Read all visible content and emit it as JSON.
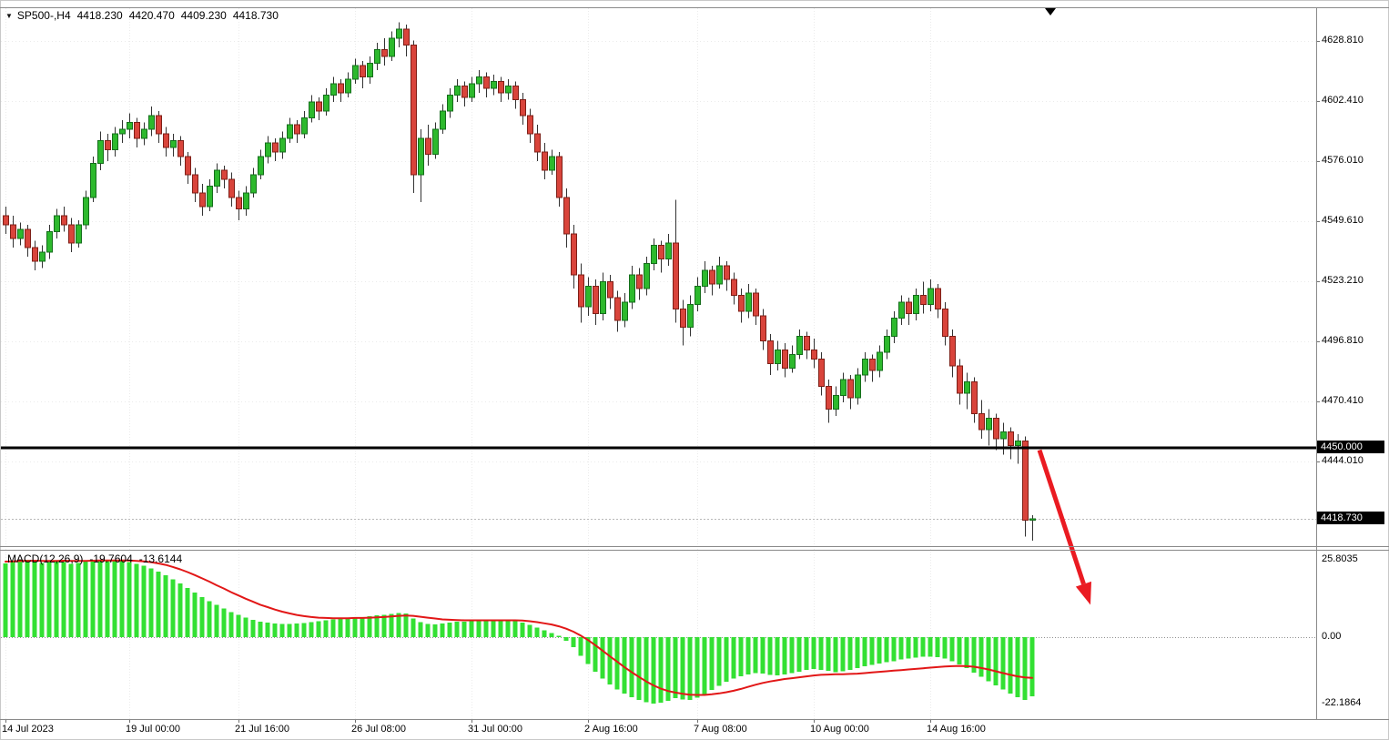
{
  "header": {
    "symbol_period": "SP500-,H4",
    "open": "4418.230",
    "high": "4420.470",
    "low": "4409.230",
    "close": "4418.730"
  },
  "indicator_header": {
    "label": "MACD(12,26,9)",
    "macd_value": "-19.7604",
    "signal_value": "-13.6144"
  },
  "colors": {
    "bull": "#2db92d",
    "bull_border": "#156e1c",
    "bear": "#d9443b",
    "bear_border": "#7e1f17",
    "wick": "#333333",
    "macd_hist": "#33e033",
    "signal": "#e21717",
    "hline": "#000000",
    "arrow": "#ea1b22",
    "grid": "#ebebeb",
    "zero_line": "#909090",
    "current_price_line": "#b8b8b8",
    "badge_bg": "#000000",
    "badge_text": "#ffffff"
  },
  "chart_data": [
    {
      "type": "candlestick",
      "symbol": "SP500",
      "timeframe": "H4",
      "ylim": [
        4406.0,
        4645.0
      ],
      "y_axis": [
        {
          "label": "4628.810",
          "price": 4628.81
        },
        {
          "label": "4602.410",
          "price": 4602.41
        },
        {
          "label": "4576.010",
          "price": 4576.01
        },
        {
          "label": "4549.610",
          "price": 4549.61
        },
        {
          "label": "4523.210",
          "price": 4523.21
        },
        {
          "label": "4496.810",
          "price": 4496.81
        },
        {
          "label": "4470.410",
          "price": 4470.41
        },
        {
          "label": "4444.010",
          "price": 4444.01
        }
      ],
      "x_ticks": [
        {
          "label": "14 Jul 2023",
          "bar": 0
        },
        {
          "label": "19 Jul 00:00",
          "bar": 17
        },
        {
          "label": "21 Jul 16:00",
          "bar": 32
        },
        {
          "label": "26 Jul 08:00",
          "bar": 48
        },
        {
          "label": "31 Jul 00:00",
          "bar": 64
        },
        {
          "label": "2 Aug 16:00",
          "bar": 80
        },
        {
          "label": "7 Aug 08:00",
          "bar": 95
        },
        {
          "label": "10 Aug 00:00",
          "bar": 111
        },
        {
          "label": "14 Aug 16:00",
          "bar": 127
        }
      ],
      "hline": {
        "price": 4450.0,
        "label": "4450.000"
      },
      "current_price": {
        "price": 4418.73,
        "label": "4418.730"
      },
      "annotations": [
        {
          "type": "arrow",
          "from_bar": 142,
          "from_price": 4449,
          "to_bar": 149,
          "to_price": 4381,
          "color": "#ea1b22"
        }
      ],
      "candles": [
        [
          4552,
          4556,
          4544,
          4548
        ],
        [
          4548,
          4552,
          4538,
          4542
        ],
        [
          4542,
          4549,
          4539,
          4546
        ],
        [
          4546,
          4548,
          4534,
          4538
        ],
        [
          4538,
          4541,
          4528,
          4532
        ],
        [
          4532,
          4539,
          4529,
          4536
        ],
        [
          4536,
          4548,
          4533,
          4545
        ],
        [
          4545,
          4555,
          4542,
          4552
        ],
        [
          4552,
          4556,
          4545,
          4548
        ],
        [
          4548,
          4551,
          4536,
          4540
        ],
        [
          4540,
          4550,
          4538,
          4548
        ],
        [
          4548,
          4563,
          4546,
          4560
        ],
        [
          4560,
          4578,
          4558,
          4575
        ],
        [
          4575,
          4589,
          4572,
          4585
        ],
        [
          4585,
          4588,
          4576,
          4581
        ],
        [
          4581,
          4591,
          4578,
          4588
        ],
        [
          4588,
          4594,
          4584,
          4590
        ],
        [
          4590,
          4597,
          4586,
          4593
        ],
        [
          4593,
          4595,
          4582,
          4586
        ],
        [
          4586,
          4593,
          4583,
          4590
        ],
        [
          4590,
          4600,
          4587,
          4596
        ],
        [
          4596,
          4598,
          4584,
          4588
        ],
        [
          4588,
          4591,
          4578,
          4582
        ],
        [
          4582,
          4588,
          4578,
          4585
        ],
        [
          4585,
          4587,
          4574,
          4578
        ],
        [
          4578,
          4580,
          4566,
          4570
        ],
        [
          4570,
          4573,
          4558,
          4562
        ],
        [
          4562,
          4566,
          4552,
          4556
        ],
        [
          4556,
          4568,
          4554,
          4565
        ],
        [
          4565,
          4575,
          4562,
          4572
        ],
        [
          4572,
          4574,
          4564,
          4568
        ],
        [
          4568,
          4571,
          4556,
          4560
        ],
        [
          4560,
          4563,
          4550,
          4555
        ],
        [
          4555,
          4565,
          4552,
          4562
        ],
        [
          4562,
          4573,
          4560,
          4570
        ],
        [
          4570,
          4581,
          4568,
          4578
        ],
        [
          4578,
          4587,
          4575,
          4584
        ],
        [
          4584,
          4586,
          4576,
          4580
        ],
        [
          4580,
          4589,
          4577,
          4586
        ],
        [
          4586,
          4595,
          4584,
          4592
        ],
        [
          4592,
          4594,
          4584,
          4588
        ],
        [
          4588,
          4598,
          4586,
          4595
        ],
        [
          4595,
          4605,
          4593,
          4602
        ],
        [
          4602,
          4604,
          4594,
          4598
        ],
        [
          4598,
          4608,
          4596,
          4605
        ],
        [
          4605,
          4613,
          4602,
          4610
        ],
        [
          4610,
          4612,
          4602,
          4606
        ],
        [
          4606,
          4615,
          4604,
          4612
        ],
        [
          4612,
          4621,
          4610,
          4618
        ],
        [
          4618,
          4620,
          4608,
          4613
        ],
        [
          4613,
          4622,
          4610,
          4619
        ],
        [
          4619,
          4628,
          4616,
          4625
        ],
        [
          4625,
          4630,
          4618,
          4622
        ],
        [
          4622,
          4633,
          4620,
          4630
        ],
        [
          4630,
          4637,
          4626,
          4634
        ],
        [
          4634,
          4636,
          4622,
          4627
        ],
        [
          4627,
          4629,
          4562,
          4570
        ],
        [
          4570,
          4590,
          4558,
          4586
        ],
        [
          4586,
          4592,
          4574,
          4579
        ],
        [
          4579,
          4593,
          4577,
          4590
        ],
        [
          4590,
          4601,
          4588,
          4598
        ],
        [
          4598,
          4608,
          4595,
          4605
        ],
        [
          4605,
          4612,
          4602,
          4609
        ],
        [
          4609,
          4611,
          4600,
          4604
        ],
        [
          4604,
          4613,
          4602,
          4610
        ],
        [
          4610,
          4616,
          4606,
          4613
        ],
        [
          4613,
          4615,
          4604,
          4608
        ],
        [
          4608,
          4614,
          4605,
          4611
        ],
        [
          4611,
          4613,
          4602,
          4606
        ],
        [
          4606,
          4612,
          4603,
          4609
        ],
        [
          4609,
          4611,
          4599,
          4603
        ],
        [
          4603,
          4606,
          4592,
          4596
        ],
        [
          4596,
          4599,
          4584,
          4588
        ],
        [
          4588,
          4592,
          4576,
          4580
        ],
        [
          4580,
          4584,
          4568,
          4572
        ],
        [
          4572,
          4581,
          4570,
          4578
        ],
        [
          4578,
          4580,
          4556,
          4560
        ],
        [
          4560,
          4564,
          4538,
          4544
        ],
        [
          4544,
          4548,
          4520,
          4526
        ],
        [
          4526,
          4531,
          4505,
          4512
        ],
        [
          4512,
          4525,
          4508,
          4521
        ],
        [
          4521,
          4524,
          4504,
          4509
        ],
        [
          4509,
          4527,
          4506,
          4523
        ],
        [
          4523,
          4526,
          4511,
          4516
        ],
        [
          4516,
          4519,
          4501,
          4506
        ],
        [
          4506,
          4518,
          4503,
          4514
        ],
        [
          4514,
          4530,
          4511,
          4526
        ],
        [
          4526,
          4529,
          4515,
          4520
        ],
        [
          4520,
          4534,
          4517,
          4531
        ],
        [
          4531,
          4542,
          4528,
          4539
        ],
        [
          4539,
          4541,
          4527,
          4533
        ],
        [
          4533,
          4544,
          4530,
          4540
        ],
        [
          4540,
          4559,
          4505,
          4511
        ],
        [
          4511,
          4515,
          4495,
          4503
        ],
        [
          4503,
          4517,
          4499,
          4513
        ],
        [
          4513,
          4525,
          4510,
          4521
        ],
        [
          4521,
          4532,
          4518,
          4528
        ],
        [
          4528,
          4530,
          4517,
          4522
        ],
        [
          4522,
          4534,
          4520,
          4530
        ],
        [
          4530,
          4532,
          4519,
          4524
        ],
        [
          4524,
          4527,
          4513,
          4517
        ],
        [
          4517,
          4520,
          4505,
          4510
        ],
        [
          4510,
          4522,
          4507,
          4518
        ],
        [
          4518,
          4520,
          4504,
          4508
        ],
        [
          4508,
          4511,
          4493,
          4497
        ],
        [
          4497,
          4500,
          4482,
          4487
        ],
        [
          4487,
          4497,
          4484,
          4493
        ],
        [
          4493,
          4496,
          4481,
          4485
        ],
        [
          4485,
          4495,
          4483,
          4491
        ],
        [
          4491,
          4502,
          4489,
          4499
        ],
        [
          4499,
          4501,
          4489,
          4493
        ],
        [
          4493,
          4498,
          4485,
          4489
        ],
        [
          4489,
          4492,
          4473,
          4477
        ],
        [
          4477,
          4480,
          4461,
          4467
        ],
        [
          4467,
          4477,
          4464,
          4473
        ],
        [
          4473,
          4483,
          4470,
          4480
        ],
        [
          4480,
          4482,
          4467,
          4472
        ],
        [
          4472,
          4485,
          4469,
          4482
        ],
        [
          4482,
          4492,
          4479,
          4489
        ],
        [
          4489,
          4491,
          4479,
          4484
        ],
        [
          4484,
          4495,
          4481,
          4492
        ],
        [
          4492,
          4502,
          4489,
          4499
        ],
        [
          4499,
          4510,
          4496,
          4507
        ],
        [
          4507,
          4517,
          4504,
          4514
        ],
        [
          4514,
          4516,
          4504,
          4509
        ],
        [
          4509,
          4520,
          4506,
          4517
        ],
        [
          4517,
          4523,
          4509,
          4513
        ],
        [
          4513,
          4524,
          4510,
          4520
        ],
        [
          4520,
          4522,
          4507,
          4511
        ],
        [
          4511,
          4514,
          4495,
          4499
        ],
        [
          4499,
          4502,
          4481,
          4486
        ],
        [
          4486,
          4489,
          4469,
          4474
        ],
        [
          4474,
          4483,
          4467,
          4479
        ],
        [
          4479,
          4481,
          4461,
          4465
        ],
        [
          4465,
          4471,
          4454,
          4458
        ],
        [
          4458,
          4467,
          4451,
          4463
        ],
        [
          4463,
          4465,
          4449,
          4454
        ],
        [
          4454,
          4461,
          4447,
          4457
        ],
        [
          4457,
          4459,
          4445,
          4451
        ],
        [
          4451,
          4456,
          4443,
          4453
        ],
        [
          4453,
          4455,
          4411,
          4418.23
        ],
        [
          4418.23,
          4420.47,
          4409.23,
          4418.73
        ]
      ]
    },
    {
      "type": "macd",
      "title": "MACD(12,26,9)",
      "params": {
        "fast": 12,
        "slow": 26,
        "signal": 9
      },
      "last_macd": -19.7604,
      "last_signal": -13.6144,
      "y_axis": [
        {
          "label": "25.8035",
          "value": 25.8035
        },
        {
          "label": "0.00",
          "value": 0
        },
        {
          "label": "-22.1864",
          "value": -22.1864
        }
      ],
      "histogram": [
        24.6,
        25.0,
        25.3,
        25.8,
        25.4,
        24.8,
        25.1,
        25.5,
        25.0,
        24.4,
        24.7,
        25.2,
        25.6,
        25.8,
        25.4,
        25.7,
        25.5,
        25.1,
        24.5,
        23.8,
        22.9,
        21.8,
        20.6,
        19.3,
        17.9,
        16.4,
        14.9,
        13.4,
        12.0,
        10.7,
        9.5,
        8.4,
        7.4,
        6.5,
        5.8,
        5.2,
        4.8,
        4.5,
        4.4,
        4.4,
        4.5,
        4.7,
        5.0,
        5.3,
        5.6,
        5.9,
        6.1,
        6.3,
        6.6,
        6.7,
        6.9,
        7.2,
        7.5,
        7.8,
        8.1,
        7.9,
        6.2,
        5.0,
        4.4,
        4.3,
        4.5,
        4.8,
        5.1,
        5.2,
        5.4,
        5.6,
        5.6,
        5.7,
        5.7,
        5.6,
        5.3,
        4.8,
        4.1,
        3.2,
        2.2,
        1.4,
        0.4,
        -1.2,
        -3.4,
        -6.2,
        -9.0,
        -11.6,
        -13.8,
        -15.8,
        -17.4,
        -18.8,
        -20.0,
        -21.0,
        -21.7,
        -22.19,
        -21.8,
        -21.2,
        -20.4,
        -20.8,
        -21.0,
        -20.2,
        -19.0,
        -17.6,
        -16.2,
        -14.9,
        -13.8,
        -13.0,
        -12.4,
        -12.0,
        -12.2,
        -12.6,
        -12.8,
        -12.5,
        -12.0,
        -11.5,
        -11.0,
        -10.7,
        -10.9,
        -11.3,
        -11.7,
        -11.4,
        -10.9,
        -10.3,
        -9.7,
        -9.2,
        -8.8,
        -8.4,
        -8.0,
        -7.5,
        -7.1,
        -6.8,
        -6.6,
        -6.5,
        -6.7,
        -7.2,
        -8.0,
        -9.1,
        -10.4,
        -11.8,
        -13.2,
        -14.7,
        -16.1,
        -17.5,
        -18.8,
        -20.0,
        -21.0,
        -19.7604
      ],
      "signal": [
        25.2,
        25.3,
        25.4,
        25.45,
        25.5,
        25.45,
        25.4,
        25.45,
        25.5,
        25.45,
        25.4,
        25.45,
        25.5,
        25.55,
        25.6,
        25.6,
        25.6,
        25.55,
        25.45,
        25.3,
        25.0,
        24.6,
        24.1,
        23.4,
        22.6,
        21.7,
        20.7,
        19.6,
        18.5,
        17.3,
        16.2,
        15.0,
        13.9,
        12.8,
        11.8,
        10.8,
        10.0,
        9.2,
        8.5,
        7.9,
        7.4,
        7.0,
        6.7,
        6.5,
        6.4,
        6.3,
        6.3,
        6.3,
        6.4,
        6.4,
        6.5,
        6.6,
        6.7,
        6.9,
        7.1,
        7.2,
        7.1,
        6.8,
        6.5,
        6.2,
        5.9,
        5.8,
        5.7,
        5.6,
        5.6,
        5.6,
        5.6,
        5.6,
        5.6,
        5.6,
        5.6,
        5.5,
        5.3,
        5.0,
        4.6,
        4.2,
        3.6,
        2.8,
        1.8,
        0.5,
        -1.0,
        -2.7,
        -4.5,
        -6.4,
        -8.2,
        -10.0,
        -11.7,
        -13.3,
        -14.8,
        -16.1,
        -17.2,
        -18.0,
        -18.5,
        -18.9,
        -19.2,
        -19.3,
        -19.3,
        -19.1,
        -18.8,
        -18.4,
        -17.9,
        -17.3,
        -16.6,
        -15.9,
        -15.3,
        -14.8,
        -14.4,
        -14.0,
        -13.7,
        -13.4,
        -13.1,
        -12.8,
        -12.6,
        -12.5,
        -12.4,
        -12.4,
        -12.3,
        -12.2,
        -12.0,
        -11.8,
        -11.6,
        -11.4,
        -11.2,
        -11.0,
        -10.8,
        -10.6,
        -10.4,
        -10.2,
        -10.0,
        -9.8,
        -9.7,
        -9.6,
        -9.7,
        -9.9,
        -10.3,
        -10.8,
        -11.4,
        -12.0,
        -12.6,
        -13.1,
        -13.45,
        -13.6144
      ]
    }
  ]
}
